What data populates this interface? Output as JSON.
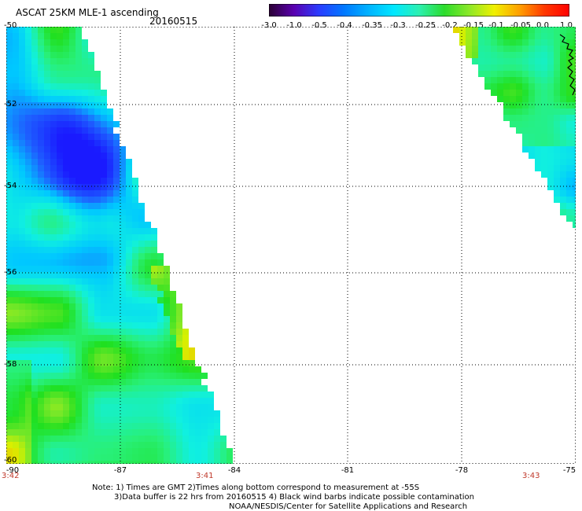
{
  "header": {
    "title": "ASCAT 25KM MLE-1 ascending",
    "date": "20160515"
  },
  "colorbar": {
    "labels": [
      "-3.0",
      "-1.0",
      "-0.5",
      "-0.4",
      "-0.35",
      "-0.3",
      "-0.25",
      "-0.2",
      "-0.15",
      "-0.1",
      "-0.05",
      "0.0",
      "1.0"
    ],
    "colors": [
      "#2a0033",
      "#5a00b0",
      "#2a3cff",
      "#0078ff",
      "#00b4ff",
      "#00e8ff",
      "#2cf0b0",
      "#2cdc2c",
      "#8ce828",
      "#f0f000",
      "#ffa000",
      "#ff3800",
      "#ff0000"
    ]
  },
  "map": {
    "lon_range": [
      -90,
      -75
    ],
    "lat_range": [
      -60,
      -50
    ],
    "lon_ticks": [
      "-90",
      "-87",
      "-84",
      "-81",
      "-78",
      "-75"
    ],
    "lat_ticks": [
      "-50",
      "-52",
      "-54",
      "-56",
      "-58",
      "-60"
    ],
    "swath_times": [
      "3:42",
      "3:41",
      "3:43"
    ]
  },
  "notes": {
    "line1": "Note: 1) Times are GMT 2)Times along bottom correspond to measurement at -55S",
    "line2": "3)Data buffer is 22 hrs from 20160515 4) Black wind barbs indicate possible contamination",
    "line3": "NOAA/NESDIS/Center for Satellite Applications and Research"
  }
}
